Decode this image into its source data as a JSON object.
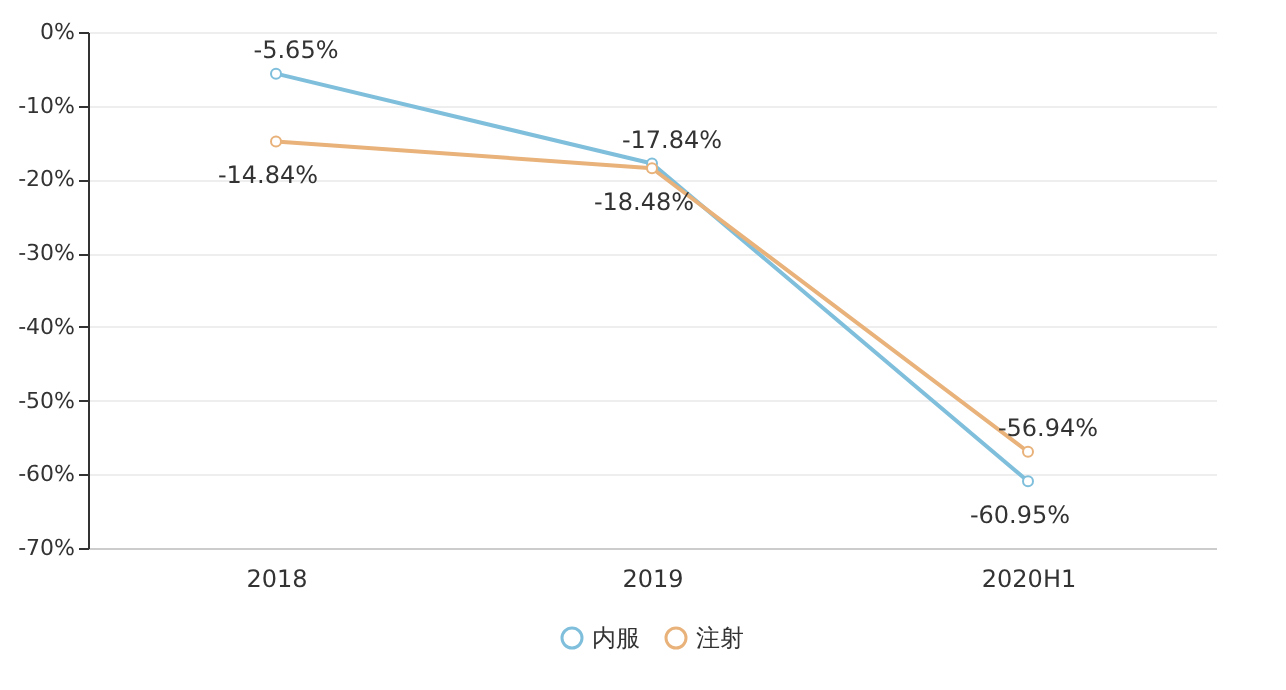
{
  "chart_data": {
    "type": "line",
    "categories": [
      "2018",
      "2019",
      "2020H1"
    ],
    "series": [
      {
        "name": "内服",
        "color": "#7fbfdc",
        "values": [
          -5.65,
          -17.84,
          -60.95
        ],
        "value_labels": [
          "-5.65%",
          "-17.84%",
          "-60.95%"
        ]
      },
      {
        "name": "注射",
        "color": "#e8b27a",
        "values": [
          -14.84,
          -18.48,
          -56.94
        ],
        "value_labels": [
          "-14.84%",
          "-18.48%",
          "-56.94%"
        ]
      }
    ],
    "ylim": [
      -70,
      0
    ],
    "yticks": [
      {
        "value": -70,
        "label": "-70%"
      },
      {
        "value": -60,
        "label": "-60%"
      },
      {
        "value": -50,
        "label": "-50%"
      },
      {
        "value": -40,
        "label": "-40%"
      },
      {
        "value": -30,
        "label": "-30%"
      },
      {
        "value": -20,
        "label": "-20%"
      },
      {
        "value": -10,
        "label": "-10%"
      },
      {
        "value": 0,
        "label": "0%"
      }
    ],
    "grid": "y",
    "legend": "bottom",
    "marker": "circle",
    "line_style": "solid"
  }
}
